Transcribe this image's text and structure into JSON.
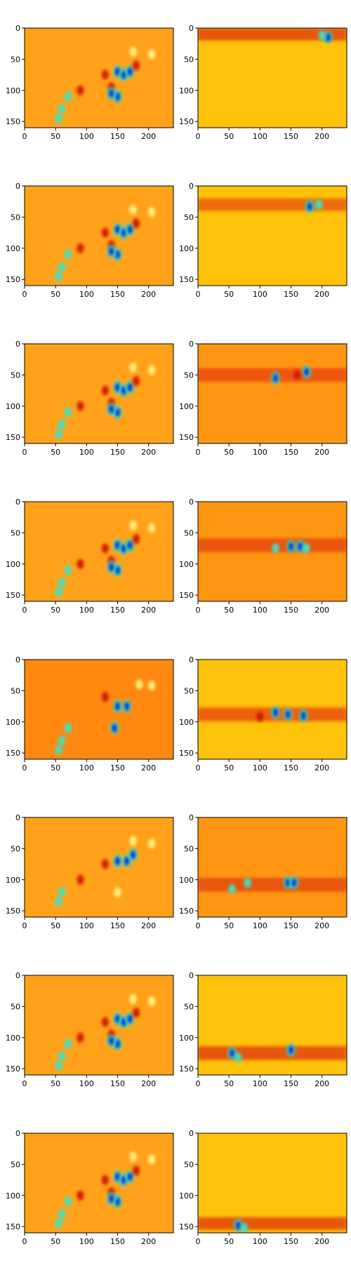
{
  "figure": {
    "rows": 8,
    "cols": 2
  },
  "chart_data": {
    "type": "heatmap",
    "colormap": "jet",
    "xlim": [
      0,
      240
    ],
    "ylim": [
      160,
      0
    ],
    "x_ticks": [
      0,
      50,
      100,
      150,
      200
    ],
    "y_ticks": [
      0,
      50,
      100,
      150
    ],
    "grid": false,
    "panels": [
      {
        "row": 1,
        "col": 1,
        "type": "heatmap",
        "background": "#ffa21a",
        "band": null,
        "hotspots": [
          [
            130,
            75,
            "r"
          ],
          [
            140,
            95,
            "r"
          ],
          [
            150,
            70,
            "b"
          ],
          [
            160,
            75,
            "b"
          ],
          [
            170,
            70,
            "b"
          ],
          [
            180,
            60,
            "r"
          ],
          [
            150,
            110,
            "b"
          ],
          [
            140,
            105,
            "b"
          ],
          [
            90,
            100,
            "r"
          ],
          [
            60,
            130,
            "c"
          ],
          [
            55,
            145,
            "c"
          ],
          [
            70,
            110,
            "c"
          ],
          [
            175,
            38,
            "y"
          ],
          [
            205,
            42,
            "y"
          ]
        ]
      },
      {
        "row": 1,
        "col": 2,
        "type": "heatmap",
        "background": "#ffc20a",
        "band": {
          "y": 10,
          "height": 20,
          "color": "#e0300a"
        },
        "hotspots": [
          [
            210,
            15,
            "b"
          ],
          [
            200,
            12,
            "c"
          ]
        ]
      },
      {
        "row": 2,
        "col": 1,
        "type": "heatmap",
        "background": "#ffa21a",
        "band": null,
        "hotspots": [
          [
            130,
            75,
            "r"
          ],
          [
            140,
            95,
            "r"
          ],
          [
            150,
            70,
            "b"
          ],
          [
            160,
            75,
            "b"
          ],
          [
            170,
            70,
            "b"
          ],
          [
            180,
            60,
            "r"
          ],
          [
            150,
            110,
            "b"
          ],
          [
            140,
            105,
            "b"
          ],
          [
            90,
            100,
            "r"
          ],
          [
            60,
            130,
            "c"
          ],
          [
            55,
            145,
            "c"
          ],
          [
            70,
            110,
            "c"
          ],
          [
            175,
            38,
            "y"
          ],
          [
            205,
            42,
            "y"
          ]
        ]
      },
      {
        "row": 2,
        "col": 2,
        "type": "heatmap",
        "background": "#ffc20a",
        "band": {
          "y": 30,
          "height": 20,
          "color": "#e85010"
        },
        "hotspots": [
          [
            180,
            33,
            "b"
          ],
          [
            195,
            30,
            "c"
          ]
        ]
      },
      {
        "row": 3,
        "col": 1,
        "type": "heatmap",
        "background": "#ffa21a",
        "band": null,
        "hotspots": [
          [
            130,
            75,
            "r"
          ],
          [
            140,
            95,
            "r"
          ],
          [
            150,
            70,
            "b"
          ],
          [
            160,
            75,
            "b"
          ],
          [
            170,
            70,
            "b"
          ],
          [
            180,
            60,
            "r"
          ],
          [
            150,
            110,
            "b"
          ],
          [
            140,
            105,
            "b"
          ],
          [
            90,
            100,
            "r"
          ],
          [
            60,
            130,
            "c"
          ],
          [
            55,
            145,
            "c"
          ],
          [
            70,
            110,
            "c"
          ],
          [
            175,
            38,
            "y"
          ],
          [
            205,
            42,
            "y"
          ]
        ]
      },
      {
        "row": 3,
        "col": 2,
        "type": "heatmap",
        "background": "#ff9612",
        "band": {
          "y": 50,
          "height": 22,
          "color": "#e84010"
        },
        "hotspots": [
          [
            125,
            55,
            "b"
          ],
          [
            175,
            45,
            "b"
          ],
          [
            160,
            50,
            "r"
          ]
        ]
      },
      {
        "row": 4,
        "col": 1,
        "type": "heatmap",
        "background": "#ffa21a",
        "band": null,
        "hotspots": [
          [
            130,
            75,
            "r"
          ],
          [
            140,
            95,
            "r"
          ],
          [
            150,
            70,
            "b"
          ],
          [
            160,
            75,
            "b"
          ],
          [
            170,
            70,
            "b"
          ],
          [
            180,
            60,
            "r"
          ],
          [
            150,
            110,
            "b"
          ],
          [
            140,
            105,
            "b"
          ],
          [
            90,
            100,
            "r"
          ],
          [
            60,
            130,
            "c"
          ],
          [
            55,
            145,
            "c"
          ],
          [
            70,
            110,
            "c"
          ],
          [
            175,
            38,
            "y"
          ],
          [
            205,
            42,
            "y"
          ]
        ]
      },
      {
        "row": 4,
        "col": 2,
        "type": "heatmap",
        "background": "#ff9612",
        "band": {
          "y": 70,
          "height": 22,
          "color": "#e04010"
        },
        "hotspots": [
          [
            125,
            75,
            "c"
          ],
          [
            150,
            72,
            "b"
          ],
          [
            165,
            72,
            "b"
          ],
          [
            175,
            75,
            "c"
          ]
        ]
      },
      {
        "row": 5,
        "col": 1,
        "type": "heatmap",
        "background": "#ff8810",
        "band": null,
        "hotspots": [
          [
            130,
            60,
            "r"
          ],
          [
            150,
            75,
            "b"
          ],
          [
            165,
            75,
            "b"
          ],
          [
            145,
            110,
            "b"
          ],
          [
            60,
            130,
            "c"
          ],
          [
            55,
            145,
            "c"
          ],
          [
            70,
            110,
            "c"
          ],
          [
            185,
            40,
            "y"
          ],
          [
            205,
            42,
            "y"
          ]
        ]
      },
      {
        "row": 5,
        "col": 2,
        "type": "heatmap",
        "background": "#ffc20a",
        "band": {
          "y": 88,
          "height": 22,
          "color": "#e84010"
        },
        "hotspots": [
          [
            125,
            85,
            "b"
          ],
          [
            145,
            88,
            "b"
          ],
          [
            170,
            90,
            "b"
          ],
          [
            100,
            92,
            "r"
          ]
        ]
      },
      {
        "row": 6,
        "col": 1,
        "type": "heatmap",
        "background": "#ffa21a",
        "band": null,
        "hotspots": [
          [
            130,
            75,
            "r"
          ],
          [
            150,
            70,
            "b"
          ],
          [
            165,
            70,
            "b"
          ],
          [
            175,
            60,
            "b"
          ],
          [
            150,
            120,
            "y"
          ],
          [
            60,
            120,
            "c"
          ],
          [
            55,
            135,
            "c"
          ],
          [
            90,
            100,
            "r"
          ],
          [
            175,
            38,
            "y"
          ],
          [
            205,
            42,
            "y"
          ]
        ]
      },
      {
        "row": 6,
        "col": 2,
        "type": "heatmap",
        "background": "#ff9612",
        "band": {
          "y": 108,
          "height": 22,
          "color": "#e04010"
        },
        "hotspots": [
          [
            145,
            105,
            "b"
          ],
          [
            155,
            105,
            "b"
          ],
          [
            80,
            105,
            "c"
          ],
          [
            55,
            115,
            "c"
          ]
        ]
      },
      {
        "row": 7,
        "col": 1,
        "type": "heatmap",
        "background": "#ffa21a",
        "band": null,
        "hotspots": [
          [
            130,
            75,
            "r"
          ],
          [
            140,
            95,
            "r"
          ],
          [
            150,
            70,
            "b"
          ],
          [
            160,
            75,
            "b"
          ],
          [
            170,
            70,
            "b"
          ],
          [
            180,
            60,
            "r"
          ],
          [
            150,
            110,
            "b"
          ],
          [
            140,
            105,
            "b"
          ],
          [
            90,
            100,
            "r"
          ],
          [
            60,
            130,
            "c"
          ],
          [
            55,
            145,
            "c"
          ],
          [
            70,
            110,
            "c"
          ],
          [
            175,
            38,
            "y"
          ],
          [
            205,
            42,
            "y"
          ]
        ]
      },
      {
        "row": 7,
        "col": 2,
        "type": "heatmap",
        "background": "#ffc20a",
        "band": {
          "y": 125,
          "height": 22,
          "color": "#e03010"
        },
        "hotspots": [
          [
            55,
            125,
            "b"
          ],
          [
            65,
            132,
            "c"
          ],
          [
            150,
            120,
            "b"
          ]
        ]
      },
      {
        "row": 8,
        "col": 1,
        "type": "heatmap",
        "background": "#ffa21a",
        "band": null,
        "hotspots": [
          [
            130,
            75,
            "r"
          ],
          [
            140,
            95,
            "r"
          ],
          [
            150,
            70,
            "b"
          ],
          [
            160,
            75,
            "b"
          ],
          [
            170,
            70,
            "b"
          ],
          [
            180,
            60,
            "r"
          ],
          [
            150,
            110,
            "b"
          ],
          [
            140,
            105,
            "b"
          ],
          [
            90,
            100,
            "r"
          ],
          [
            60,
            130,
            "c"
          ],
          [
            55,
            145,
            "c"
          ],
          [
            70,
            110,
            "c"
          ],
          [
            175,
            38,
            "y"
          ],
          [
            205,
            42,
            "y"
          ]
        ]
      },
      {
        "row": 8,
        "col": 2,
        "type": "heatmap",
        "background": "#ffc20a",
        "band": {
          "y": 145,
          "height": 20,
          "color": "#e03010"
        },
        "hotspots": [
          [
            65,
            148,
            "b"
          ],
          [
            75,
            152,
            "c"
          ]
        ]
      }
    ]
  },
  "colors": {
    "r": "#d41a00",
    "b": "#0a30d0",
    "c": "#40e0c0",
    "y": "#fff080",
    "axis": "#000000"
  }
}
